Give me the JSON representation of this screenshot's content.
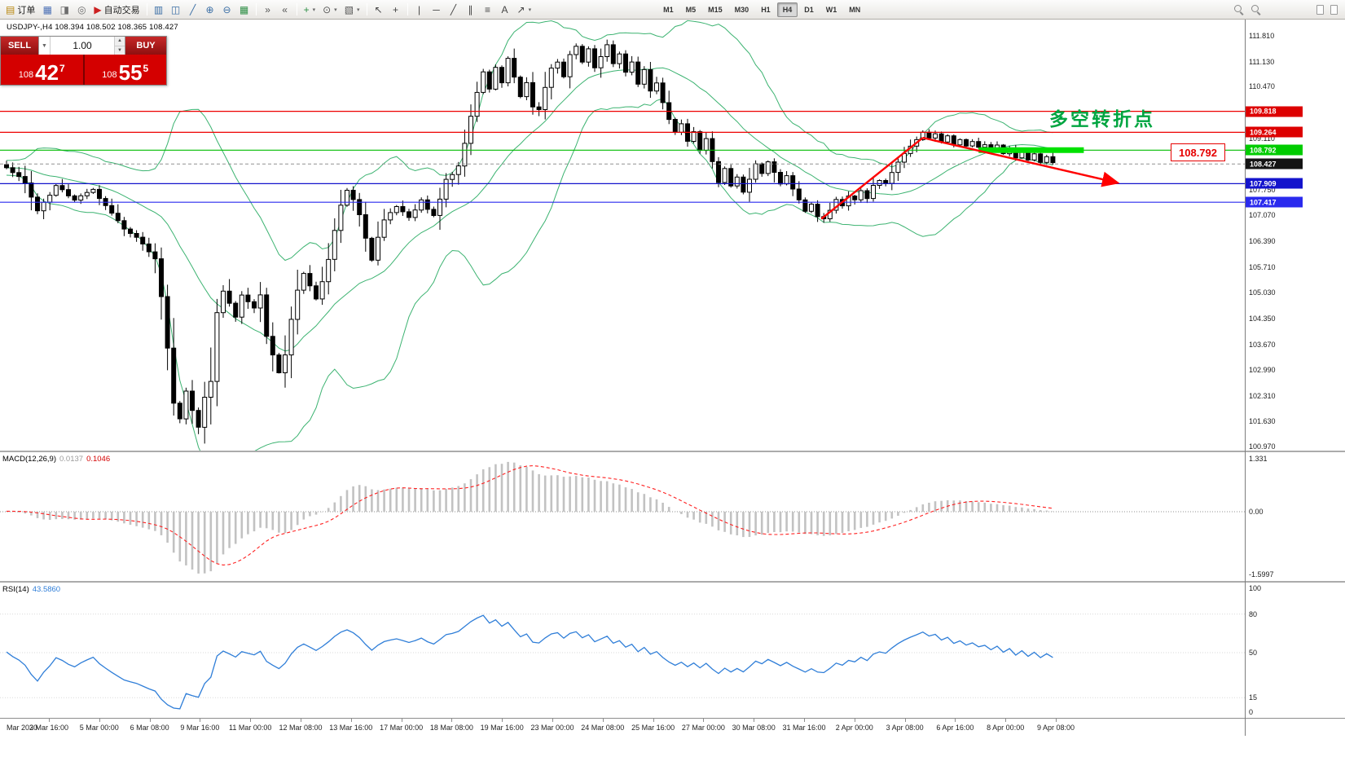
{
  "toolbar": {
    "items": [
      {
        "name": "new-order-button",
        "glyph": "▤",
        "label": "订单",
        "color": "#b8860b"
      },
      {
        "name": "chart-window-button",
        "glyph": "▦",
        "color": "#4a6fb5"
      },
      {
        "name": "profiles-button",
        "glyph": "◨",
        "color": "#6d6d6d"
      },
      {
        "name": "data-window-button",
        "glyph": "◎",
        "color": "#6d6d6d"
      },
      {
        "name": "autotrading-button",
        "glyph": "▶",
        "label": "自动交易",
        "color": "#cc2020"
      },
      {
        "sep": true
      },
      {
        "name": "bar-chart-mode-button",
        "glyph": "▥",
        "color": "#3a6ea5"
      },
      {
        "name": "candlestick-mode-button",
        "glyph": "◫",
        "color": "#3a6ea5"
      },
      {
        "name": "line-chart-mode-button",
        "glyph": "╱",
        "color": "#3a6ea5"
      },
      {
        "name": "zoom-in-button",
        "glyph": "⊕",
        "color": "#3a6ea5"
      },
      {
        "name": "zoom-out-button",
        "glyph": "⊖",
        "color": "#3a6ea5"
      },
      {
        "name": "tile-windows-button",
        "glyph": "▦",
        "color": "#2f8f46"
      },
      {
        "sep": true
      },
      {
        "name": "auto-scroll-button",
        "glyph": "»",
        "color": "#555555"
      },
      {
        "name": "chart-shift-button",
        "glyph": "«",
        "color": "#555555"
      },
      {
        "sep": true
      },
      {
        "name": "indicators-button",
        "glyph": "+",
        "color": "#2f8f46",
        "dropdown": true
      },
      {
        "name": "periods-button",
        "glyph": "⊙",
        "color": "#555555",
        "dropdown": true
      },
      {
        "name": "templates-button",
        "glyph": "▧",
        "color": "#555555",
        "dropdown": true
      },
      {
        "sep": true
      },
      {
        "name": "cursor-button",
        "glyph": "↖",
        "color": "#444444"
      },
      {
        "name": "crosshair-button",
        "glyph": "+",
        "color": "#444444"
      },
      {
        "sep": true
      },
      {
        "name": "vertical-line-button",
        "glyph": "|",
        "color": "#444444"
      },
      {
        "name": "horizontal-line-button",
        "glyph": "─",
        "color": "#444444"
      },
      {
        "name": "trendline-button",
        "glyph": "╱",
        "color": "#444444"
      },
      {
        "name": "channel-button",
        "glyph": "∥",
        "color": "#444444"
      },
      {
        "name": "fibonacci-button",
        "glyph": "≡",
        "color": "#444444"
      },
      {
        "name": "text-tool-button",
        "glyph": "A",
        "color": "#444444"
      },
      {
        "name": "shapes-tool-button",
        "glyph": "↗",
        "color": "#444444",
        "dropdown": true
      }
    ],
    "timeframes": [
      "M1",
      "M5",
      "M15",
      "M30",
      "H1",
      "H4",
      "D1",
      "W1",
      "MN"
    ],
    "active_timeframe": "H4"
  },
  "chart": {
    "title": "USDJPY-,H4  108.394 108.502 108.365 108.427",
    "annotation": "多空转折点",
    "price_label": "108.792"
  },
  "trade_panel": {
    "sell_label": "SELL",
    "buy_label": "BUY",
    "volume": "1.00",
    "sell_price_small": "108",
    "sell_price_big": "42",
    "sell_price_sup": "7",
    "buy_price_small": "108",
    "buy_price_big": "55",
    "buy_price_sup": "5"
  },
  "indicators": {
    "macd_name": "MACD(12,26,9)",
    "macd_v1": "0.0137",
    "macd_v2": "0.1046",
    "rsi_name": "RSI(14)",
    "rsi_value": "43.5860"
  },
  "chart_data": {
    "type": "candlestick",
    "symbol": "USDJPY-",
    "timeframe": "H4",
    "current_ohlc": {
      "open": 108.394,
      "high": 108.502,
      "low": 108.365,
      "close": 108.427
    },
    "candle_count": 170,
    "y_ticks": [
      111.81,
      111.13,
      110.47,
      109.79,
      109.11,
      108.43,
      107.75,
      107.07,
      106.39,
      105.71,
      105.03,
      104.35,
      103.67,
      102.99,
      102.31,
      101.63,
      100.97
    ],
    "levels": [
      {
        "price": 109.818,
        "color": "#ee0000",
        "badge": "#dd0000",
        "label": "109.818"
      },
      {
        "price": 109.264,
        "color": "#ee0000",
        "badge": "#dd0000",
        "label": "109.264"
      },
      {
        "price": 108.792,
        "color": "#00bb00",
        "badge": "#00cc00",
        "label": "108.792"
      },
      {
        "price": 108.427,
        "color": "#909090",
        "badge": "#141414",
        "label": "108.427",
        "dash": true
      },
      {
        "price": 107.909,
        "color": "#1414cc",
        "badge": "#1414cc",
        "label": "107.909"
      },
      {
        "price": 107.417,
        "color": "#2a2aee",
        "badge": "#2a2aee",
        "label": "107.417"
      }
    ],
    "bollinger": {
      "period": 20,
      "deviation": 2,
      "color": "#3cb371"
    },
    "close_anchors": [
      [
        0,
        108.3
      ],
      [
        3,
        107.95
      ],
      [
        5,
        107.2
      ],
      [
        8,
        107.85
      ],
      [
        11,
        107.5
      ],
      [
        14,
        107.75
      ],
      [
        16,
        107.35
      ],
      [
        19,
        106.7
      ],
      [
        22,
        106.35
      ],
      [
        24,
        105.9
      ],
      [
        25,
        104.9
      ],
      [
        26,
        103.6
      ],
      [
        27,
        102.1
      ],
      [
        28,
        101.7
      ],
      [
        29,
        102.4
      ],
      [
        30,
        101.9
      ],
      [
        31,
        101.45
      ],
      [
        32,
        102.3
      ],
      [
        33,
        102.7
      ],
      [
        34,
        104.5
      ],
      [
        35,
        105.1
      ],
      [
        37,
        104.4
      ],
      [
        38,
        105.0
      ],
      [
        40,
        104.6
      ],
      [
        41,
        104.95
      ],
      [
        42,
        103.9
      ],
      [
        43,
        103.4
      ],
      [
        44,
        102.95
      ],
      [
        45,
        103.4
      ],
      [
        46,
        104.3
      ],
      [
        47,
        105.1
      ],
      [
        48,
        105.55
      ],
      [
        49,
        105.2
      ],
      [
        50,
        104.85
      ],
      [
        51,
        105.35
      ],
      [
        52,
        105.9
      ],
      [
        53,
        106.7
      ],
      [
        54,
        107.35
      ],
      [
        55,
        107.75
      ],
      [
        56,
        107.5
      ],
      [
        57,
        107.1
      ],
      [
        58,
        106.5
      ],
      [
        59,
        105.9
      ],
      [
        60,
        106.5
      ],
      [
        61,
        106.95
      ],
      [
        63,
        107.3
      ],
      [
        65,
        107.0
      ],
      [
        67,
        107.45
      ],
      [
        69,
        107.05
      ],
      [
        70,
        107.5
      ],
      [
        71,
        108.0
      ],
      [
        73,
        108.35
      ],
      [
        74,
        109.0
      ],
      [
        75,
        109.7
      ],
      [
        76,
        110.35
      ],
      [
        77,
        110.85
      ],
      [
        78,
        110.4
      ],
      [
        79,
        111.0
      ],
      [
        80,
        110.55
      ],
      [
        81,
        111.2
      ],
      [
        82,
        110.75
      ],
      [
        83,
        110.2
      ],
      [
        84,
        110.6
      ],
      [
        85,
        109.95
      ],
      [
        86,
        109.85
      ],
      [
        87,
        110.45
      ],
      [
        88,
        110.95
      ],
      [
        89,
        111.15
      ],
      [
        90,
        110.7
      ],
      [
        91,
        111.3
      ],
      [
        92,
        111.5
      ],
      [
        93,
        111.1
      ],
      [
        94,
        111.45
      ],
      [
        95,
        110.95
      ],
      [
        96,
        111.25
      ],
      [
        97,
        111.55
      ],
      [
        98,
        111.05
      ],
      [
        99,
        111.35
      ],
      [
        100,
        110.85
      ],
      [
        101,
        111.15
      ],
      [
        102,
        110.55
      ],
      [
        103,
        110.9
      ],
      [
        104,
        110.35
      ],
      [
        105,
        110.6
      ],
      [
        106,
        110.05
      ],
      [
        107,
        109.6
      ],
      [
        108,
        109.25
      ],
      [
        109,
        109.5
      ],
      [
        110,
        109.0
      ],
      [
        111,
        109.3
      ],
      [
        112,
        108.8
      ],
      [
        113,
        109.1
      ],
      [
        114,
        108.5
      ],
      [
        115,
        107.95
      ],
      [
        116,
        108.3
      ],
      [
        117,
        107.85
      ],
      [
        118,
        108.1
      ],
      [
        119,
        107.65
      ],
      [
        120,
        108.0
      ],
      [
        121,
        108.4
      ],
      [
        122,
        108.15
      ],
      [
        123,
        108.5
      ],
      [
        124,
        108.2
      ],
      [
        125,
        107.9
      ],
      [
        126,
        108.15
      ],
      [
        127,
        107.8
      ],
      [
        128,
        107.5
      ],
      [
        129,
        107.2
      ],
      [
        130,
        107.4
      ],
      [
        131,
        107.05
      ],
      [
        132,
        106.95
      ],
      [
        133,
        107.2
      ],
      [
        134,
        107.5
      ],
      [
        135,
        107.35
      ],
      [
        136,
        107.6
      ],
      [
        137,
        107.45
      ],
      [
        138,
        107.7
      ],
      [
        139,
        107.55
      ],
      [
        140,
        107.85
      ],
      [
        141,
        108.0
      ],
      [
        142,
        107.9
      ],
      [
        143,
        108.2
      ],
      [
        144,
        108.45
      ],
      [
        145,
        108.7
      ],
      [
        146,
        108.9
      ],
      [
        147,
        109.1
      ],
      [
        148,
        109.3
      ],
      [
        149,
        109.1
      ],
      [
        150,
        109.2
      ],
      [
        151,
        109.0
      ],
      [
        152,
        109.15
      ],
      [
        153,
        108.95
      ],
      [
        154,
        109.1
      ],
      [
        155,
        108.9
      ],
      [
        156,
        109.0
      ],
      [
        157,
        108.85
      ],
      [
        158,
        108.95
      ],
      [
        159,
        108.8
      ],
      [
        160,
        108.9
      ],
      [
        161,
        108.7
      ],
      [
        162,
        108.85
      ],
      [
        163,
        108.6
      ],
      [
        164,
        108.75
      ],
      [
        165,
        108.55
      ],
      [
        166,
        108.7
      ],
      [
        167,
        108.5
      ],
      [
        168,
        108.6
      ],
      [
        169,
        108.43
      ]
    ],
    "trend_lines": [
      {
        "i1": 131.6,
        "p1": 106.98,
        "i2": 148,
        "p2": 109.12,
        "arrow": false
      },
      {
        "i1": 148,
        "p1": 109.12,
        "i2": 179.5,
        "p2": 107.93,
        "arrow": true
      }
    ],
    "highlight_segment": {
      "price": 108.792,
      "i1": 157,
      "i2": 174,
      "color": "#00e100"
    },
    "x_labels": [
      "Mar 2020",
      "3 Mar 16:00",
      "5 Mar 00:00",
      "6 Mar 08:00",
      "9 Mar 16:00",
      "11 Mar 00:00",
      "12 Mar 08:00",
      "13 Mar 16:00",
      "17 Mar 00:00",
      "18 Mar 08:00",
      "19 Mar 16:00",
      "23 Mar 00:00",
      "24 Mar 08:00",
      "25 Mar 16:00",
      "27 Mar 00:00",
      "30 Mar 08:00",
      "31 Mar 16:00",
      "2 Apr 00:00",
      "3 Apr 08:00",
      "6 Apr 16:00",
      "8 Apr 00:00",
      "9 Apr 08:00"
    ],
    "macd": {
      "fast": 12,
      "slow": 26,
      "signal": 9,
      "axis": [
        {
          "label": "1.331",
          "v": 1.331
        },
        {
          "label": "0.00",
          "v": 0
        },
        {
          "label": "-1.5997",
          "v": -1.5997
        }
      ],
      "bar_color": "#c2c2c2",
      "signal_color": "#ff2020"
    },
    "rsi": {
      "period": 14,
      "axis": [
        {
          "label": "100",
          "v": 100
        },
        {
          "label": "80",
          "v": 80
        },
        {
          "label": "50",
          "v": 50
        },
        {
          "label": "15",
          "v": 15
        },
        {
          "label": "0",
          "v": 0
        }
      ],
      "levels": [
        80,
        50,
        15
      ],
      "color": "#2f7ed8"
    }
  }
}
